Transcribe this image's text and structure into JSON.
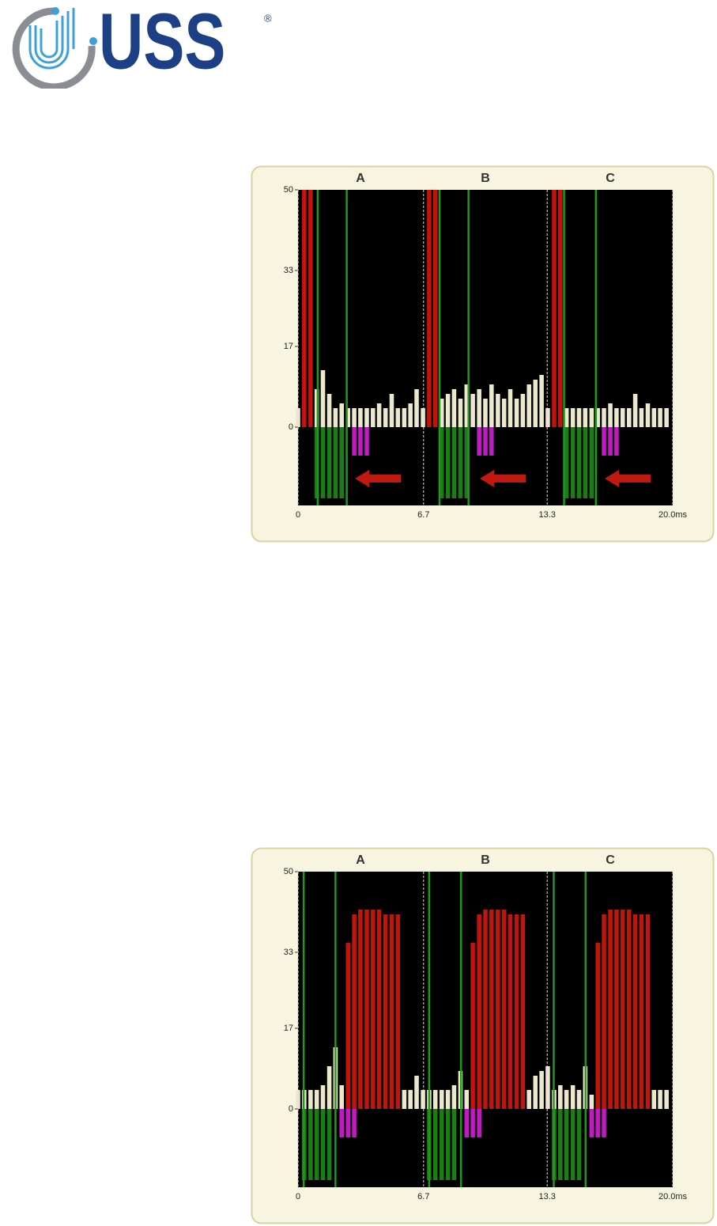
{
  "logo": {
    "text": "USS",
    "mark": "®"
  },
  "chart_data": [
    {
      "type": "bar",
      "phases": [
        "A",
        "B",
        "C"
      ],
      "x": [
        0,
        0.33,
        0.67,
        1,
        1.33,
        1.67,
        2,
        2.33,
        2.67,
        3,
        3.33,
        3.67,
        4,
        4.33,
        4.67,
        5,
        5.33,
        5.67,
        6,
        6.33,
        6.67,
        7,
        7.33,
        7.67,
        8,
        8.33,
        8.67,
        9,
        9.33,
        9.67,
        10,
        10.33,
        10.67,
        11,
        11.33,
        11.67,
        12,
        12.33,
        12.67,
        13,
        13.33,
        13.67,
        14,
        14.33,
        14.67,
        15,
        15.33,
        15.67,
        16,
        16.33,
        16.67,
        17,
        17.33,
        17.67,
        18,
        18.33,
        18.67,
        19,
        19.33,
        19.67
      ],
      "series": [
        {
          "color": "#ece8cc",
          "values": [
            4,
            null,
            null,
            8,
            12,
            7,
            4,
            5,
            4,
            4,
            4,
            4,
            4,
            5,
            4,
            7,
            4,
            4,
            5,
            8,
            4,
            null,
            null,
            6,
            7,
            8,
            6,
            9,
            7,
            8,
            6,
            9,
            7,
            6,
            8,
            6,
            7,
            9,
            10,
            11,
            4,
            null,
            null,
            4,
            4,
            4,
            4,
            4,
            4,
            4,
            5,
            4,
            4,
            4,
            7,
            4,
            5,
            4,
            4,
            4
          ]
        },
        {
          "color": "#c0140c",
          "values": [
            null,
            50,
            50,
            null,
            null,
            null,
            null,
            null,
            null,
            null,
            null,
            null,
            null,
            null,
            null,
            null,
            null,
            null,
            null,
            null,
            null,
            50,
            50,
            null,
            null,
            null,
            null,
            null,
            null,
            null,
            null,
            null,
            null,
            null,
            null,
            null,
            null,
            null,
            null,
            null,
            null,
            50,
            50,
            null,
            null,
            null,
            null,
            null,
            null,
            null,
            null,
            null,
            null,
            null,
            null,
            null,
            null,
            null,
            null,
            null
          ]
        },
        {
          "color": "#1f7a1a",
          "values": [
            null,
            null,
            null,
            -15,
            -15,
            -15,
            -15,
            -15,
            null,
            null,
            null,
            null,
            null,
            null,
            null,
            null,
            null,
            null,
            null,
            null,
            null,
            null,
            null,
            -15,
            -15,
            -15,
            -15,
            -15,
            null,
            null,
            null,
            null,
            null,
            null,
            null,
            null,
            null,
            null,
            null,
            null,
            null,
            null,
            null,
            -15,
            -15,
            -15,
            -15,
            -15,
            null,
            null,
            null,
            null,
            null,
            null,
            null,
            null,
            null,
            null,
            null,
            null
          ]
        },
        {
          "color": "#c21ac2",
          "values": [
            null,
            null,
            null,
            null,
            null,
            null,
            null,
            null,
            null,
            -6,
            -6,
            -6,
            null,
            null,
            null,
            null,
            null,
            null,
            null,
            null,
            null,
            null,
            null,
            null,
            null,
            null,
            null,
            null,
            null,
            -6,
            -6,
            -6,
            null,
            null,
            null,
            null,
            null,
            null,
            null,
            null,
            null,
            null,
            null,
            null,
            null,
            null,
            null,
            null,
            null,
            -6,
            -6,
            -6,
            null,
            null,
            null,
            null,
            null,
            null,
            null,
            null
          ]
        }
      ],
      "markers": [
        1.05,
        2.6,
        7.55,
        9.1,
        14.2,
        15.9
      ],
      "marker_color": "#1f9a1a",
      "xlim": [
        0,
        20
      ],
      "xticks": [
        0,
        6.7,
        13.3,
        {
          "value": 20,
          "label": "20.0ms"
        }
      ],
      "ylim": [
        -16.5,
        50
      ],
      "yticks": [
        0,
        17,
        33,
        50
      ],
      "grid": true
    },
    {
      "type": "bar",
      "phases": [
        "A",
        "B",
        "C"
      ],
      "x": [
        0,
        0.33,
        0.67,
        1,
        1.33,
        1.67,
        2,
        2.33,
        2.67,
        3,
        3.33,
        3.67,
        4,
        4.33,
        4.67,
        5,
        5.33,
        5.67,
        6,
        6.33,
        6.67,
        7,
        7.33,
        7.67,
        8,
        8.33,
        8.67,
        9,
        9.33,
        9.67,
        10,
        10.33,
        10.67,
        11,
        11.33,
        11.67,
        12,
        12.33,
        12.67,
        13,
        13.33,
        13.67,
        14,
        14.33,
        14.67,
        15,
        15.33,
        15.67,
        16,
        16.33,
        16.67,
        17,
        17.33,
        17.67,
        18,
        18.33,
        18.67,
        19,
        19.33,
        19.67
      ],
      "series": [
        {
          "color": "#ece8cc",
          "values": [
            4,
            4,
            4,
            4,
            5,
            9,
            13,
            5,
            null,
            null,
            null,
            null,
            null,
            null,
            null,
            null,
            null,
            4,
            4,
            7,
            4,
            4,
            4,
            4,
            4,
            5,
            8,
            4,
            null,
            null,
            null,
            null,
            null,
            null,
            null,
            null,
            null,
            4,
            7,
            8,
            9,
            4,
            5,
            4,
            5,
            4,
            9,
            3,
            null,
            null,
            null,
            null,
            null,
            null,
            null,
            null,
            null,
            4,
            4,
            4
          ]
        },
        {
          "color": "#c0140c",
          "values": [
            null,
            null,
            null,
            null,
            null,
            null,
            null,
            null,
            35,
            41,
            42,
            42,
            42,
            42,
            41,
            41,
            41,
            null,
            null,
            null,
            null,
            null,
            null,
            null,
            null,
            null,
            null,
            null,
            35,
            41,
            42,
            42,
            42,
            42,
            41,
            41,
            41,
            null,
            null,
            null,
            null,
            null,
            null,
            null,
            null,
            null,
            null,
            null,
            35,
            41,
            42,
            42,
            42,
            42,
            41,
            41,
            41,
            null,
            null,
            null
          ]
        },
        {
          "color": "#1f7a1a",
          "values": [
            null,
            -15,
            -15,
            -15,
            -15,
            -15,
            null,
            null,
            null,
            null,
            null,
            null,
            null,
            null,
            null,
            null,
            null,
            null,
            null,
            null,
            null,
            -15,
            -15,
            -15,
            -15,
            -15,
            null,
            null,
            null,
            null,
            null,
            null,
            null,
            null,
            null,
            null,
            null,
            null,
            null,
            null,
            null,
            -15,
            -15,
            -15,
            -15,
            -15,
            null,
            null,
            null,
            null,
            null,
            null,
            null,
            null,
            null,
            null,
            null,
            null,
            null,
            null
          ]
        },
        {
          "color": "#c21ac2",
          "values": [
            null,
            null,
            null,
            null,
            null,
            null,
            null,
            -6,
            -6,
            -6,
            null,
            null,
            null,
            null,
            null,
            null,
            null,
            null,
            null,
            null,
            null,
            null,
            null,
            null,
            null,
            null,
            null,
            -6,
            -6,
            -6,
            null,
            null,
            null,
            null,
            null,
            null,
            null,
            null,
            null,
            null,
            null,
            null,
            null,
            null,
            null,
            null,
            null,
            -6,
            -6,
            -6,
            null,
            null,
            null,
            null,
            null,
            null,
            null,
            null,
            null,
            null
          ]
        }
      ],
      "markers": [
        0.3,
        2.0,
        7.0,
        8.7,
        13.65,
        15.35
      ],
      "marker_color": "#1f9a1a",
      "xlim": [
        0,
        20
      ],
      "xticks": [
        0,
        6.7,
        13.3,
        {
          "value": 20,
          "label": "20.0ms"
        }
      ],
      "ylim": [
        -16.5,
        50
      ],
      "yticks": [
        0,
        17,
        33,
        50
      ],
      "grid": true
    }
  ]
}
